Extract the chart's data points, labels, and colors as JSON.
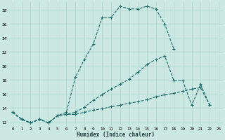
{
  "xlabel": "Humidex (Indice chaleur)",
  "bg_color": "#cce8e2",
  "grid_color": "#aad4cc",
  "line_color": "#1a6b6b",
  "xlim_min": -0.5,
  "xlim_max": 23.5,
  "ylim_min": 11.5,
  "ylim_max": 29.2,
  "xticks": [
    0,
    1,
    2,
    3,
    4,
    5,
    6,
    7,
    8,
    9,
    10,
    11,
    12,
    13,
    14,
    15,
    16,
    17,
    18,
    19,
    20,
    21,
    22,
    23
  ],
  "yticks": [
    12,
    14,
    16,
    18,
    20,
    22,
    24,
    26,
    28
  ],
  "line1_x": [
    0,
    1,
    2,
    3,
    4,
    5,
    6,
    7,
    8,
    9,
    10,
    11,
    12,
    13,
    14,
    15,
    16,
    17,
    18
  ],
  "line1_y": [
    13.5,
    12.5,
    12.0,
    12.5,
    12.0,
    13.0,
    13.5,
    18.5,
    21.0,
    23.2,
    27.0,
    27.0,
    28.6,
    28.2,
    28.2,
    28.6,
    28.2,
    26.0,
    22.5
  ],
  "line2_x": [
    0,
    1,
    2,
    3,
    4,
    5,
    6,
    7,
    8,
    9,
    10,
    11,
    12,
    13,
    14,
    15,
    16,
    17,
    18,
    19,
    20,
    21,
    22
  ],
  "line2_y": [
    13.5,
    12.5,
    12.0,
    12.5,
    12.0,
    13.0,
    13.2,
    13.5,
    14.2,
    15.2,
    16.0,
    16.8,
    17.5,
    18.2,
    19.2,
    20.3,
    21.0,
    21.5,
    18.0,
    18.0,
    14.5,
    17.5,
    14.5
  ],
  "line3_x": [
    0,
    1,
    2,
    3,
    4,
    5,
    6,
    7,
    8,
    9,
    10,
    11,
    12,
    13,
    14,
    15,
    16,
    17,
    18,
    19,
    20,
    21,
    22
  ],
  "line3_y": [
    13.5,
    12.5,
    12.0,
    12.5,
    12.0,
    13.0,
    13.2,
    13.2,
    13.5,
    13.8,
    14.0,
    14.3,
    14.5,
    14.8,
    15.0,
    15.3,
    15.7,
    16.0,
    16.2,
    16.5,
    16.8,
    17.0,
    14.5
  ]
}
